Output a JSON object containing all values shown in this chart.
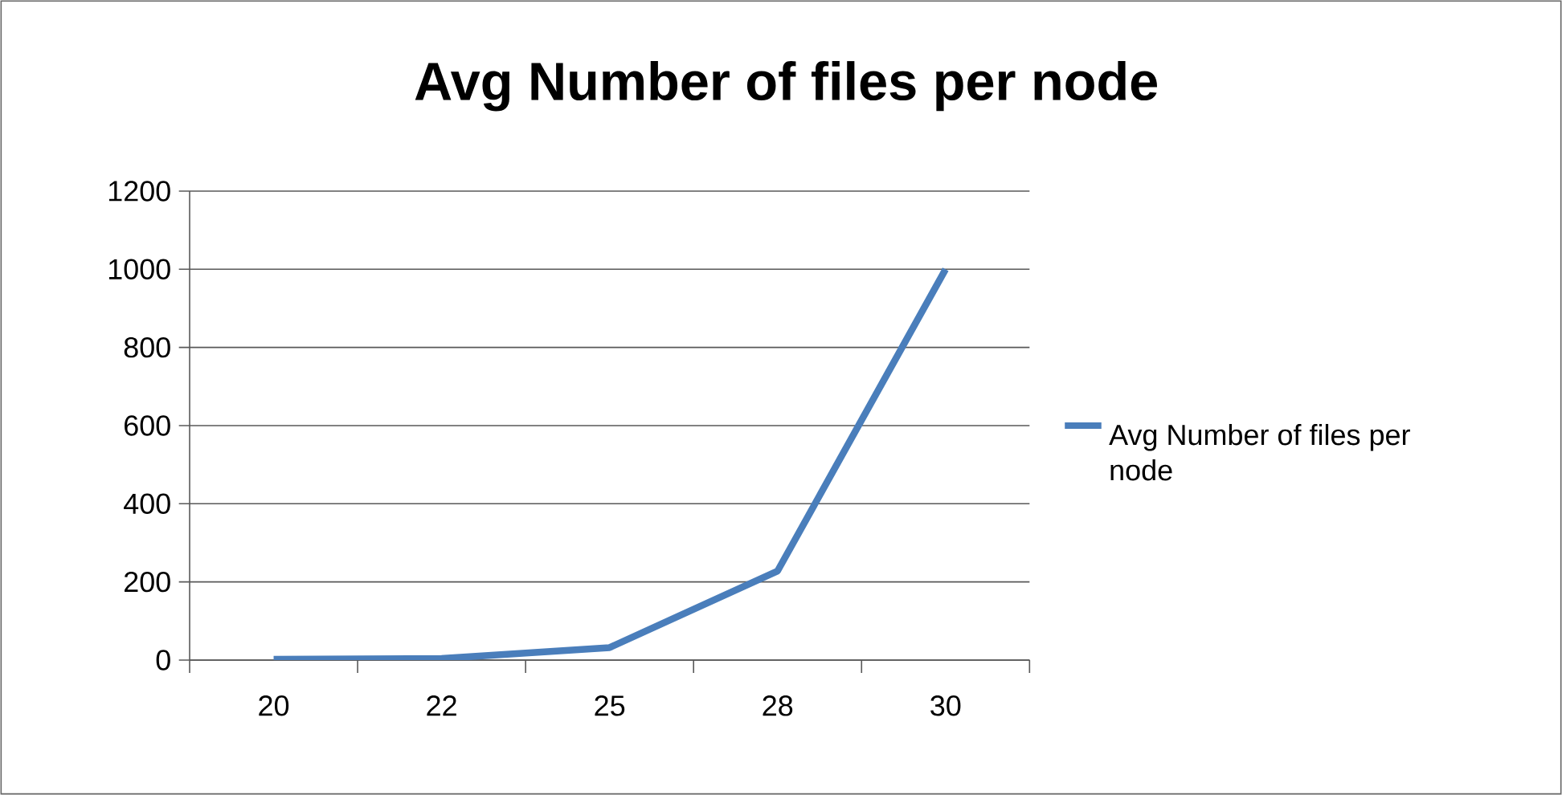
{
  "chart_data": {
    "type": "line",
    "title": "Avg Number of files per node",
    "categories": [
      "20",
      "22",
      "25",
      "28",
      "30"
    ],
    "series": [
      {
        "name": "Avg Number of files per node",
        "color": "#4a7ebb",
        "values": [
          2,
          4,
          32,
          228,
          1000
        ]
      }
    ],
    "ylim": [
      0,
      1200
    ],
    "yticks": [
      0,
      200,
      400,
      600,
      800,
      1000,
      1200
    ],
    "grid": "y",
    "legend": "right",
    "marker": "none",
    "line_style": "solid"
  }
}
